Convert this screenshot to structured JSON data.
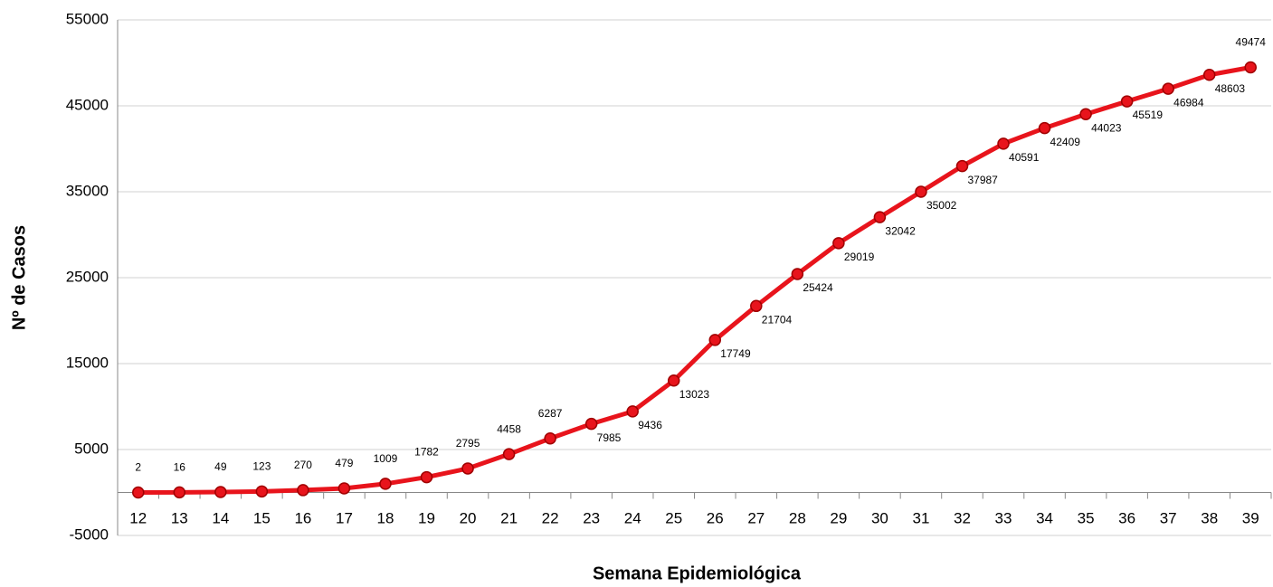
{
  "chart_data": {
    "type": "line",
    "x_label": "Semana Epidemiológica",
    "y_label": "Nº de Casos",
    "categories": [
      "12",
      "13",
      "14",
      "15",
      "16",
      "17",
      "18",
      "19",
      "20",
      "21",
      "22",
      "23",
      "24",
      "25",
      "26",
      "27",
      "28",
      "29",
      "30",
      "31",
      "32",
      "33",
      "34",
      "35",
      "36",
      "37",
      "38",
      "39"
    ],
    "series": [
      {
        "name": "Nº de Casos",
        "color": "#e8141c",
        "values": [
          2,
          16,
          49,
          123,
          270,
          479,
          1009,
          1782,
          2795,
          4458,
          6287,
          7985,
          9436,
          13023,
          17749,
          21704,
          25424,
          29019,
          32042,
          35002,
          37987,
          40591,
          42409,
          44023,
          45519,
          46984,
          48603,
          49474
        ]
      }
    ],
    "ylim": [
      -5000,
      55000
    ],
    "yticks": [
      -5000,
      5000,
      15000,
      25000,
      35000,
      45000,
      55000
    ],
    "grid": true
  }
}
